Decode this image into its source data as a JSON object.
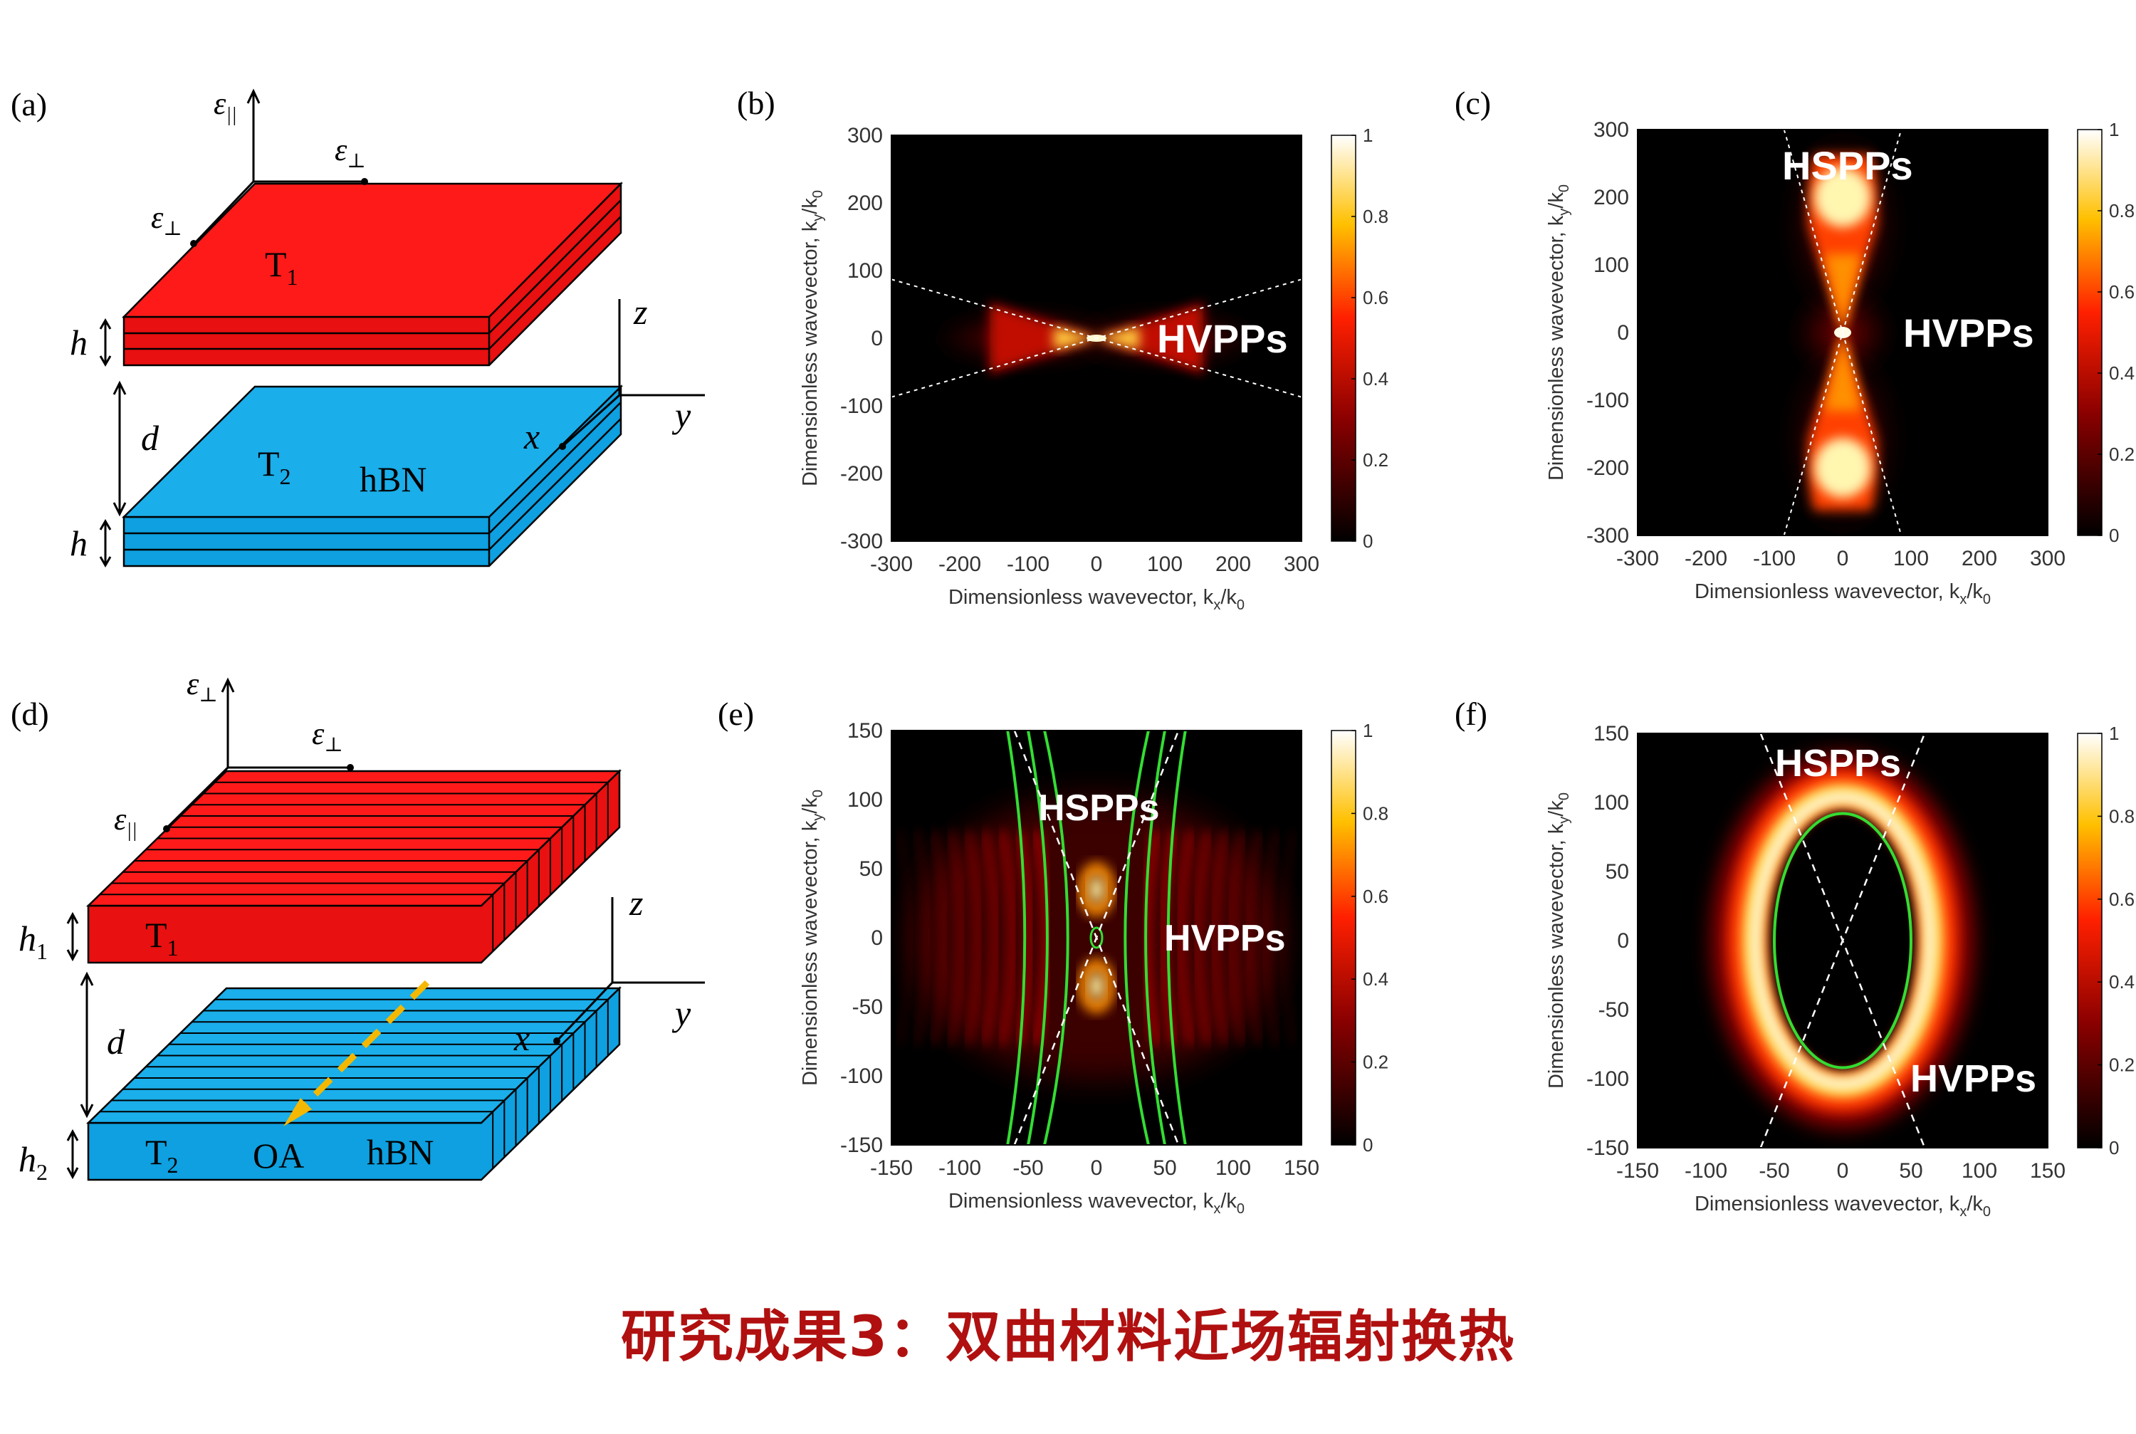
{
  "caption": "研究成果3：双曲材料近场辐射换热",
  "colors": {
    "red_slab": "#ff1a1a",
    "blue_slab": "#1aaeea",
    "caption": "#b01010",
    "green_curve": "#33dd33",
    "arrow_yellow": "#f5b800"
  },
  "schematics": [
    {
      "id": "a",
      "panel_label": "(a)",
      "top_slab": "T",
      "top_slab_sub": "1",
      "bottom_slab": "T",
      "bottom_slab_sub": "2",
      "material": "hBN",
      "axis_eps_vertical": "ε",
      "axis_eps_vertical_sub": "||",
      "axis_eps_right": "ε",
      "axis_eps_right_sub": "⊥",
      "axis_eps_left": "ε",
      "axis_eps_left_sub": "⊥",
      "dim_top": "h",
      "dim_top_sub": "",
      "dim_gap": "d",
      "dim_bottom": "h",
      "dim_bottom_sub": "",
      "axis_z": "z",
      "axis_y": "y",
      "axis_x": "x"
    },
    {
      "id": "d",
      "panel_label": "(d)",
      "top_slab": "T",
      "top_slab_sub": "1",
      "bottom_slab": "T",
      "bottom_slab_sub": "2",
      "material": "hBN",
      "optic_axis": "OA",
      "axis_eps_vertical": "ε",
      "axis_eps_vertical_sub": "⊥",
      "axis_eps_right": "ε",
      "axis_eps_right_sub": "⊥",
      "axis_eps_left": "ε",
      "axis_eps_left_sub": "||",
      "dim_top": "h",
      "dim_top_sub": "1",
      "dim_gap": "d",
      "dim_bottom": "h",
      "dim_bottom_sub": "2",
      "axis_z": "z",
      "axis_y": "y",
      "axis_x": "x"
    }
  ],
  "chart_data": [
    {
      "id": "b",
      "panel_label": "(b)",
      "type": "heatmap",
      "xlabel": "Dimensionless wavevector, k",
      "xlabel_sub": "x",
      "xlabel_tail": "/k",
      "xlabel_tail_sub": "0",
      "ylabel": "Dimensionless wavevector, k",
      "ylabel_sub": "y",
      "ylabel_tail": "/k",
      "ylabel_tail_sub": "0",
      "xlim": [
        -300,
        300
      ],
      "ylim": [
        -300,
        300
      ],
      "xticks": [
        "-300",
        "-200",
        "-100",
        "0",
        "100",
        "200",
        "300"
      ],
      "yticks": [
        "300",
        "200",
        "100",
        "0",
        "-100",
        "-200",
        "-300"
      ],
      "colorbar": {
        "range": [
          0,
          1
        ],
        "ticks": [
          "1",
          "0.8",
          "0.6",
          "0.4",
          "0.2",
          "0"
        ]
      },
      "pattern": "bowtie-horizontal",
      "annotations": [
        {
          "text": "HVPPs"
        }
      ]
    },
    {
      "id": "c",
      "panel_label": "(c)",
      "type": "heatmap",
      "xlabel": "Dimensionless wavevector, k",
      "xlabel_sub": "x",
      "xlabel_tail": "/k",
      "xlabel_tail_sub": "0",
      "ylabel": "Dimensionless wavevector, k",
      "ylabel_sub": "y",
      "ylabel_tail": "/k",
      "ylabel_tail_sub": "0",
      "xlim": [
        -300,
        300
      ],
      "ylim": [
        -300,
        300
      ],
      "xticks": [
        "-300",
        "-200",
        "-100",
        "0",
        "100",
        "200",
        "300"
      ],
      "yticks": [
        "300",
        "200",
        "100",
        "0",
        "-100",
        "-200",
        "-300"
      ],
      "colorbar": {
        "range": [
          0,
          1
        ],
        "ticks": [
          "1",
          "0.8",
          "0.6",
          "0.4",
          "0.2",
          "0"
        ]
      },
      "pattern": "hourglass-vertical",
      "annotations": [
        {
          "text": "HSPPs"
        },
        {
          "text": "HVPPs"
        }
      ]
    },
    {
      "id": "e",
      "panel_label": "(e)",
      "type": "heatmap",
      "xlabel": "Dimensionless wavevector, k",
      "xlabel_sub": "x",
      "xlabel_tail": "/k",
      "xlabel_tail_sub": "0",
      "ylabel": "Dimensionless wavevector, k",
      "ylabel_sub": "y",
      "ylabel_tail": "/k",
      "ylabel_tail_sub": "0",
      "xlim": [
        -150,
        150
      ],
      "ylim": [
        -150,
        150
      ],
      "xticks": [
        "-150",
        "-100",
        "-50",
        "0",
        "50",
        "100",
        "150"
      ],
      "yticks": [
        "150",
        "100",
        "50",
        "0",
        "-50",
        "-100",
        "-150"
      ],
      "colorbar": {
        "range": [
          0,
          1
        ],
        "ticks": [
          "1",
          "0.8",
          "0.6",
          "0.4",
          "0.2",
          "0"
        ]
      },
      "pattern": "hyperbolic-fringes",
      "annotations": [
        {
          "text": "HSPPs"
        },
        {
          "text": "HVPPs"
        }
      ]
    },
    {
      "id": "f",
      "panel_label": "(f)",
      "type": "heatmap",
      "xlabel": "Dimensionless wavevector, k",
      "xlabel_sub": "x",
      "xlabel_tail": "/k",
      "xlabel_tail_sub": "0",
      "ylabel": "Dimensionless wavevector, k",
      "ylabel_sub": "y",
      "ylabel_tail": "/k",
      "ylabel_tail_sub": "0",
      "xlim": [
        -150,
        150
      ],
      "ylim": [
        -150,
        150
      ],
      "xticks": [
        "-150",
        "-100",
        "-50",
        "0",
        "50",
        "100",
        "150"
      ],
      "yticks": [
        "150",
        "100",
        "50",
        "0",
        "-50",
        "-100",
        "-150"
      ],
      "colorbar": {
        "range": [
          0,
          1
        ],
        "ticks": [
          "1",
          "0.8",
          "0.6",
          "0.4",
          "0.2",
          "0"
        ]
      },
      "pattern": "ellipse-ring",
      "annotations": [
        {
          "text": "HSPPs"
        },
        {
          "text": "HVPPs"
        }
      ]
    }
  ]
}
